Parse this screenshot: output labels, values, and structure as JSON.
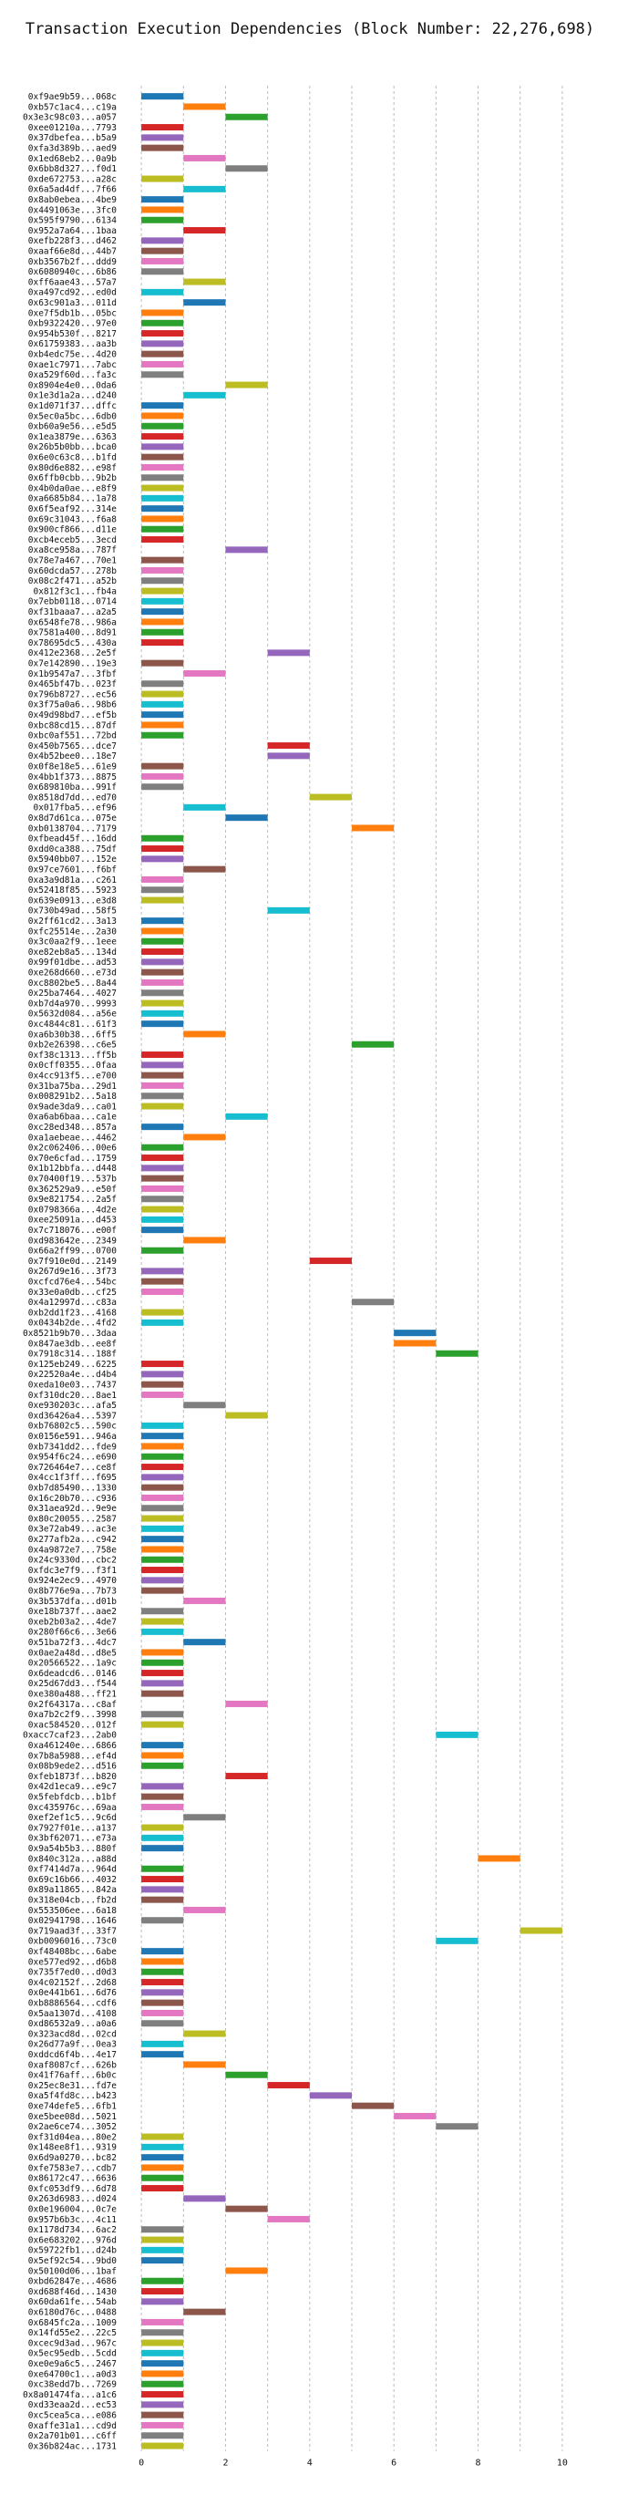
{
  "chart_data": {
    "type": "bar",
    "orientation": "horizontal-gantt",
    "title": "Transaction Execution Dependencies (Block Number: 22,276,698)",
    "xlabel": "",
    "ylabel": "",
    "xlim": [
      -0.5,
      10.5
    ],
    "x_ticks": [
      0,
      2,
      4,
      6,
      8,
      10
    ],
    "grid": true,
    "palette": [
      "#1f77b4",
      "#ff7f0e",
      "#2ca02c",
      "#d62728",
      "#9467bd",
      "#8c564b",
      "#e377c2",
      "#7f7f7f",
      "#bcbd22",
      "#17becf"
    ],
    "transactions": [
      {
        "tx": "0xf9ae9b59...068c",
        "start": 0
      },
      {
        "tx": "0xb57c1ac4...c19a",
        "start": 1
      },
      {
        "tx": "0x3e3c98c03...a057",
        "start": 2
      },
      {
        "tx": "0xee01210a...7793",
        "start": 0
      },
      {
        "tx": "0x37dbefea...b5a9",
        "start": 0
      },
      {
        "tx": "0xfa3d389b...aed9",
        "start": 0
      },
      {
        "tx": "0x1ed68eb2...0a9b",
        "start": 1
      },
      {
        "tx": "0x6bb8d327...f0d1",
        "start": 2
      },
      {
        "tx": "0xde672753...a28c",
        "start": 0
      },
      {
        "tx": "0x6a5ad4df...7f66",
        "start": 1
      },
      {
        "tx": "0x8ab0ebea...4be9",
        "start": 0
      },
      {
        "tx": "0x4491063e...3fc0",
        "start": 0
      },
      {
        "tx": "0x595f9790...6134",
        "start": 0
      },
      {
        "tx": "0x952a7a64...1baa",
        "start": 1
      },
      {
        "tx": "0xefb228f3...d462",
        "start": 0
      },
      {
        "tx": "0xaaf66e8d...44b7",
        "start": 0
      },
      {
        "tx": "0xb3567b2f...ddd9",
        "start": 0
      },
      {
        "tx": "0x6080940c...6b86",
        "start": 0
      },
      {
        "tx": "0xff6aae43...57a7",
        "start": 1
      },
      {
        "tx": "0xa497cd92...ed0d",
        "start": 0
      },
      {
        "tx": "0x63c901a3...011d",
        "start": 1
      },
      {
        "tx": "0xe7f5db1b...05bc",
        "start": 0
      },
      {
        "tx": "0xb9322420...97e0",
        "start": 0
      },
      {
        "tx": "0x954b530f...8217",
        "start": 0
      },
      {
        "tx": "0x61759383...aa3b",
        "start": 0
      },
      {
        "tx": "0xb4edc75e...4d20",
        "start": 0
      },
      {
        "tx": "0xae1c7971...7abc",
        "start": 0
      },
      {
        "tx": "0xa529f60d...fa3c",
        "start": 0
      },
      {
        "tx": "0x8904e4e0...0da6",
        "start": 2
      },
      {
        "tx": "0x1e3d1a2a...d240",
        "start": 1
      },
      {
        "tx": "0x1d071f37...dffc",
        "start": 0
      },
      {
        "tx": "0x5ec0a5bc...6db0",
        "start": 0
      },
      {
        "tx": "0xb60a9e56...e5d5",
        "start": 0
      },
      {
        "tx": "0x1ea3879e...6363",
        "start": 0
      },
      {
        "tx": "0x26b5b0bb...bca0",
        "start": 0
      },
      {
        "tx": "0x6e0c63c8...b1fd",
        "start": 0
      },
      {
        "tx": "0x80d6e882...e98f",
        "start": 0
      },
      {
        "tx": "0x6ffb0cbb...9b2b",
        "start": 0
      },
      {
        "tx": "0x4b0da0ae...e8f9",
        "start": 0
      },
      {
        "tx": "0xa6685b84...1a78",
        "start": 0
      },
      {
        "tx": "0x6f5eaf92...314e",
        "start": 0
      },
      {
        "tx": "0x69c31043...f6a8",
        "start": 0
      },
      {
        "tx": "0x900cf866...d11e",
        "start": 0
      },
      {
        "tx": "0xcb4eceb5...3ecd",
        "start": 0
      },
      {
        "tx": "0xa8ce958a...787f",
        "start": 2
      },
      {
        "tx": "0x78e7a467...70e1",
        "start": 0
      },
      {
        "tx": "0x60dcda57...278b",
        "start": 0
      },
      {
        "tx": "0x08c2f471...a52b",
        "start": 0
      },
      {
        "tx": "0x812f3c1...fb4a",
        "start": 0
      },
      {
        "tx": "0x7ebb0118...0714",
        "start": 0
      },
      {
        "tx": "0xf31baaa7...a2a5",
        "start": 0
      },
      {
        "tx": "0x6548fe78...986a",
        "start": 0
      },
      {
        "tx": "0x7581a400...8d91",
        "start": 0
      },
      {
        "tx": "0x78695dc5...430a",
        "start": 0
      },
      {
        "tx": "0x412e2368...2e5f",
        "start": 3
      },
      {
        "tx": "0x7e142890...19e3",
        "start": 0
      },
      {
        "tx": "0x1b9547a7...3fbf",
        "start": 1
      },
      {
        "tx": "0x465bf47b...023f",
        "start": 0
      },
      {
        "tx": "0x796b8727...ec56",
        "start": 0
      },
      {
        "tx": "0x3f75a0a6...98b6",
        "start": 0
      },
      {
        "tx": "0x49d98bd7...ef5b",
        "start": 0
      },
      {
        "tx": "0xbc88cd15...87df",
        "start": 0
      },
      {
        "tx": "0xbc0af551...72bd",
        "start": 0
      },
      {
        "tx": "0x450b7565...dce7",
        "start": 3
      },
      {
        "tx": "0x4b52bee0...18e7",
        "start": 3
      },
      {
        "tx": "0x0f8e18e5...61e9",
        "start": 0
      },
      {
        "tx": "0x4bb1f373...8875",
        "start": 0
      },
      {
        "tx": "0x689810ba...991f",
        "start": 0
      },
      {
        "tx": "0x8518d7dd...ed70",
        "start": 4
      },
      {
        "tx": "0x017fba5...ef96",
        "start": 1
      },
      {
        "tx": "0x8d7d61ca...075e",
        "start": 2
      },
      {
        "tx": "0xb0138704...7179",
        "start": 5
      },
      {
        "tx": "0xfbead45f...16dd",
        "start": 0
      },
      {
        "tx": "0xdd0ca388...75df",
        "start": 0
      },
      {
        "tx": "0x5940bb07...152e",
        "start": 0
      },
      {
        "tx": "0x97ce7601...f6bf",
        "start": 1
      },
      {
        "tx": "0xa3a9d81a...c261",
        "start": 0
      },
      {
        "tx": "0x52418f85...5923",
        "start": 0
      },
      {
        "tx": "0x639e0913...e3d8",
        "start": 0
      },
      {
        "tx": "0x730b49ad...58f5",
        "start": 3
      },
      {
        "tx": "0x2ff61cd2...3a13",
        "start": 0
      },
      {
        "tx": "0xfc25514e...2a30",
        "start": 0
      },
      {
        "tx": "0x3c0aa2f9...1eee",
        "start": 0
      },
      {
        "tx": "0xe82eb8a5...134d",
        "start": 0
      },
      {
        "tx": "0x99f01dbe...ad53",
        "start": 0
      },
      {
        "tx": "0xe268d660...e73d",
        "start": 0
      },
      {
        "tx": "0xc8802be5...8a44",
        "start": 0
      },
      {
        "tx": "0x25ba7464...4027",
        "start": 0
      },
      {
        "tx": "0xb7d4a970...9993",
        "start": 0
      },
      {
        "tx": "0x5632d084...a56e",
        "start": 0
      },
      {
        "tx": "0xc4844c81...61f3",
        "start": 0
      },
      {
        "tx": "0xa6b30b38...6ff5",
        "start": 1
      },
      {
        "tx": "0xb2e26398...c6e5",
        "start": 5
      },
      {
        "tx": "0xf38c1313...ff5b",
        "start": 0
      },
      {
        "tx": "0x0cff0355...0faa",
        "start": 0
      },
      {
        "tx": "0x4cc913f5...e700",
        "start": 0
      },
      {
        "tx": "0x31ba75ba...29d1",
        "start": 0
      },
      {
        "tx": "0x008291b2...5a18",
        "start": 0
      },
      {
        "tx": "0x9ade3da9...ca01",
        "start": 0
      },
      {
        "tx": "0xa6ab6baa...ca1e",
        "start": 2
      },
      {
        "tx": "0xc28ed348...857a",
        "start": 0
      },
      {
        "tx": "0xa1aebeae...4462",
        "start": 1
      },
      {
        "tx": "0x2c062406...00e6",
        "start": 0
      },
      {
        "tx": "0x70e6cfad...1759",
        "start": 0
      },
      {
        "tx": "0x1b12bbfa...d448",
        "start": 0
      },
      {
        "tx": "0x70400f19...537b",
        "start": 0
      },
      {
        "tx": "0x362529a9...e50f",
        "start": 0
      },
      {
        "tx": "0x9e821754...2a5f",
        "start": 0
      },
      {
        "tx": "0x0798366a...4d2e",
        "start": 0
      },
      {
        "tx": "0xee25091a...d453",
        "start": 0
      },
      {
        "tx": "0x7c718076...e00f",
        "start": 0
      },
      {
        "tx": "0xd983642e...2349",
        "start": 1
      },
      {
        "tx": "0x66a2ff99...0700",
        "start": 0
      },
      {
        "tx": "0x7f910e0d...2149",
        "start": 4
      },
      {
        "tx": "0x267d9e16...3f73",
        "start": 0
      },
      {
        "tx": "0xcfcd76e4...54bc",
        "start": 0
      },
      {
        "tx": "0x33e0a0db...cf25",
        "start": 0
      },
      {
        "tx": "0x4a12997d...c83a",
        "start": 5
      },
      {
        "tx": "0xb2dd1f23...4168",
        "start": 0
      },
      {
        "tx": "0x0434b2de...4fd2",
        "start": 0
      },
      {
        "tx": "0x8521b9b70...3daa",
        "start": 6
      },
      {
        "tx": "0x847ae3db...ee8f",
        "start": 6
      },
      {
        "tx": "0x7918c314...188f",
        "start": 7
      },
      {
        "tx": "0x125eb249...6225",
        "start": 0
      },
      {
        "tx": "0x22520a4e...d4b4",
        "start": 0
      },
      {
        "tx": "0xeda10e03...7437",
        "start": 0
      },
      {
        "tx": "0xf310dc20...8ae1",
        "start": 0
      },
      {
        "tx": "0xe930203c...afa5",
        "start": 1
      },
      {
        "tx": "0xd36426a4...5397",
        "start": 2
      },
      {
        "tx": "0xb76802c5...590c",
        "start": 0
      },
      {
        "tx": "0x0156e591...946a",
        "start": 0
      },
      {
        "tx": "0xb7341dd2...fde9",
        "start": 0
      },
      {
        "tx": "0x954f6c24...e690",
        "start": 0
      },
      {
        "tx": "0x726464e7...ce8f",
        "start": 0
      },
      {
        "tx": "0x4cc1f3ff...f695",
        "start": 0
      },
      {
        "tx": "0xb7d85490...1330",
        "start": 0
      },
      {
        "tx": "0x16c20b70...c936",
        "start": 0
      },
      {
        "tx": "0x31aea92d...9e9e",
        "start": 0
      },
      {
        "tx": "0x80c20055...2587",
        "start": 0
      },
      {
        "tx": "0x3e72ab49...ac3e",
        "start": 0
      },
      {
        "tx": "0x277afb2a...c942",
        "start": 0
      },
      {
        "tx": "0x4a9872e7...758e",
        "start": 0
      },
      {
        "tx": "0x24c9330d...cbc2",
        "start": 0
      },
      {
        "tx": "0xfdc3e7f9...f3f1",
        "start": 0
      },
      {
        "tx": "0x924e2ec9...4970",
        "start": 0
      },
      {
        "tx": "0x8b776e9a...7b73",
        "start": 0
      },
      {
        "tx": "0x3b537dfa...d01b",
        "start": 1
      },
      {
        "tx": "0xe18b737f...aae2",
        "start": 0
      },
      {
        "tx": "0xeb2b03a2...4de7",
        "start": 0
      },
      {
        "tx": "0x280f66c6...3e66",
        "start": 0
      },
      {
        "tx": "0x51ba72f3...4dc7",
        "start": 1
      },
      {
        "tx": "0x0ae2a48d...d8e5",
        "start": 0
      },
      {
        "tx": "0x20566522...1a9c",
        "start": 0
      },
      {
        "tx": "0x6deadcd6...0146",
        "start": 0
      },
      {
        "tx": "0x25d67dd3...f544",
        "start": 0
      },
      {
        "tx": "0xe380a488...ff21",
        "start": 0
      },
      {
        "tx": "0x2f64317a...c8af",
        "start": 2
      },
      {
        "tx": "0xa7b2c2f9...3998",
        "start": 0
      },
      {
        "tx": "0xac584520...012f",
        "start": 0
      },
      {
        "tx": "0xacc7caf23...2ab0",
        "start": 7
      },
      {
        "tx": "0xa461240e...6866",
        "start": 0
      },
      {
        "tx": "0x7b8a5988...ef4d",
        "start": 0
      },
      {
        "tx": "0x08b9ede2...d516",
        "start": 0
      },
      {
        "tx": "0xfeb1873f...b820",
        "start": 2
      },
      {
        "tx": "0x42d1eca9...e9c7",
        "start": 0
      },
      {
        "tx": "0x5febfdcb...b1bf",
        "start": 0
      },
      {
        "tx": "0xc435976c...69aa",
        "start": 0
      },
      {
        "tx": "0xef2ef1c5...9c6d",
        "start": 1
      },
      {
        "tx": "0x7927f01e...a137",
        "start": 0
      },
      {
        "tx": "0x3bf62071...e73a",
        "start": 0
      },
      {
        "tx": "0x9a54b5b3...880f",
        "start": 0
      },
      {
        "tx": "0x840c312a...a88d",
        "start": 8
      },
      {
        "tx": "0xf7414d7a...964d",
        "start": 0
      },
      {
        "tx": "0x69c16b66...4032",
        "start": 0
      },
      {
        "tx": "0x89a11865...842a",
        "start": 0
      },
      {
        "tx": "0x318e04cb...fb2d",
        "start": 0
      },
      {
        "tx": "0x553506ee...6a18",
        "start": 1
      },
      {
        "tx": "0x02941798...1646",
        "start": 0
      },
      {
        "tx": "0x719aad3f...33f7",
        "start": 9
      },
      {
        "tx": "0xb0096016...73c0",
        "start": 7
      },
      {
        "tx": "0xf48408bc...6abe",
        "start": 0
      },
      {
        "tx": "0xe577ed92...d6b8",
        "start": 0
      },
      {
        "tx": "0x735f7ed0...d0d3",
        "start": 0
      },
      {
        "tx": "0x4c02152f...2d68",
        "start": 0
      },
      {
        "tx": "0x0e441b61...6d76",
        "start": 0
      },
      {
        "tx": "0xb8886564...cdf6",
        "start": 0
      },
      {
        "tx": "0x5aa1307d...4108",
        "start": 0
      },
      {
        "tx": "0xd86532a9...a0a6",
        "start": 0
      },
      {
        "tx": "0x323acd8d...02cd",
        "start": 1
      },
      {
        "tx": "0x26d77a9f...0ea3",
        "start": 0
      },
      {
        "tx": "0xddcd6f4b...4e17",
        "start": 0
      },
      {
        "tx": "0xaf8087cf...626b",
        "start": 1
      },
      {
        "tx": "0x41f76aff...6b0c",
        "start": 2
      },
      {
        "tx": "0x25ec8e31...fd7e",
        "start": 3
      },
      {
        "tx": "0xa5f4fd8c...b423",
        "start": 4
      },
      {
        "tx": "0xe74defe5...6fb1",
        "start": 5
      },
      {
        "tx": "0xe5bee08d...5021",
        "start": 6
      },
      {
        "tx": "0x2ae6ce74...3052",
        "start": 7
      },
      {
        "tx": "0xf31d04ea...80e2",
        "start": 0
      },
      {
        "tx": "0x148ee8f1...9319",
        "start": 0
      },
      {
        "tx": "0x6d9a0270...bc82",
        "start": 0
      },
      {
        "tx": "0xfe7583e7...cdb7",
        "start": 0
      },
      {
        "tx": "0x86172c47...6636",
        "start": 0
      },
      {
        "tx": "0xfc053df9...6d78",
        "start": 0
      },
      {
        "tx": "0x263d6983...d024",
        "start": 1
      },
      {
        "tx": "0x0e196004...0c7e",
        "start": 2
      },
      {
        "tx": "0x957b6b3c...4c11",
        "start": 3
      },
      {
        "tx": "0x1178d734...6ac2",
        "start": 0
      },
      {
        "tx": "0x6e683202...976d",
        "start": 0
      },
      {
        "tx": "0x59722fb1...d24b",
        "start": 0
      },
      {
        "tx": "0x5ef92c54...9bd0",
        "start": 0
      },
      {
        "tx": "0x50100d06...1baf",
        "start": 2
      },
      {
        "tx": "0xbd62847e...4686",
        "start": 0
      },
      {
        "tx": "0xd688f46d...1430",
        "start": 0
      },
      {
        "tx": "0x60da61fe...54ab",
        "start": 0
      },
      {
        "tx": "0x6180d76c...0488",
        "start": 1
      },
      {
        "tx": "0x6845fc2a...1009",
        "start": 0
      },
      {
        "tx": "0x14fd55e2...22c5",
        "start": 0
      },
      {
        "tx": "0xcec9d3ad...967c",
        "start": 0
      },
      {
        "tx": "0x5ec95edb...5cdd",
        "start": 0
      },
      {
        "tx": "0xe0e9a6c5...2467",
        "start": 0
      },
      {
        "tx": "0xe64700c1...a0d3",
        "start": 0
      },
      {
        "tx": "0xc38edd7b...7269",
        "start": 0
      },
      {
        "tx": "0x8a01474fa...a1c6",
        "start": 0
      },
      {
        "tx": "0xd33eaa2d...ec53",
        "start": 0
      },
      {
        "tx": "0xc5cea5ca...e086",
        "start": 0
      },
      {
        "tx": "0xaffe31a1...cd9d",
        "start": 0
      },
      {
        "tx": "0x2a701b01...c6ff",
        "start": 0
      },
      {
        "tx": "0x36b824ac...1731",
        "start": 0
      }
    ]
  }
}
